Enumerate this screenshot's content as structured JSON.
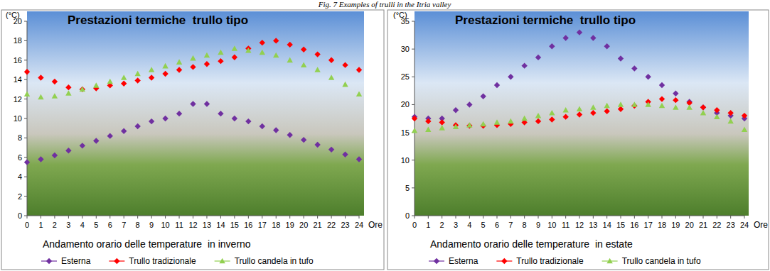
{
  "caption": "Fig. 7 Examples of trulli in the Itria valley",
  "chart_data": [
    {
      "type": "line",
      "title": "Prestazioni termiche  trullo tipo",
      "y_label": "(°C)",
      "x_unit_label": "Ore",
      "x_label": "Andamento orario delle temperature  in inverno",
      "x": [
        0,
        1,
        2,
        3,
        4,
        5,
        6,
        7,
        8,
        9,
        10,
        11,
        12,
        13,
        14,
        15,
        16,
        17,
        18,
        19,
        20,
        21,
        22,
        23,
        24
      ],
      "xlim": [
        0,
        24
      ],
      "xticks": [
        0,
        1,
        2,
        3,
        4,
        5,
        6,
        7,
        8,
        9,
        10,
        11,
        12,
        13,
        14,
        15,
        16,
        17,
        18,
        19,
        20,
        21,
        22,
        23,
        24
      ],
      "ylim": [
        0,
        20
      ],
      "yticks": [
        0,
        2,
        4,
        6,
        8,
        10,
        12,
        14,
        16,
        18,
        20
      ],
      "grid": false,
      "legend": "bottom",
      "series": [
        {
          "name": "Esterna",
          "color": "#7030a0",
          "marker": "diamond",
          "line_style": "none",
          "values": [
            5.5,
            5.8,
            6.2,
            6.7,
            7.2,
            7.7,
            8.2,
            8.7,
            9.2,
            9.7,
            10.0,
            10.5,
            11.5,
            11.5,
            10.5,
            10.0,
            9.7,
            9.2,
            8.8,
            8.3,
            7.8,
            7.3,
            6.8,
            6.3,
            5.8
          ]
        },
        {
          "name": "Trullo tradizionale",
          "color": "#ff0000",
          "marker": "diamond",
          "line_style": "none",
          "values": [
            14.8,
            14.2,
            13.8,
            13.2,
            13.0,
            13.1,
            13.4,
            13.6,
            13.9,
            14.2,
            14.6,
            15.0,
            15.3,
            15.6,
            15.9,
            16.3,
            17.2,
            17.8,
            18.0,
            17.6,
            17.1,
            16.6,
            16.0,
            15.5,
            15.0
          ]
        },
        {
          "name": "Trullo candela in tufo",
          "color": "#92d050",
          "marker": "triangle",
          "line_style": "none",
          "values": [
            12.5,
            12.2,
            12.3,
            12.6,
            13.0,
            13.4,
            13.8,
            14.2,
            14.6,
            15.0,
            15.4,
            15.8,
            16.2,
            16.5,
            16.8,
            17.2,
            17.0,
            16.8,
            16.5,
            16.0,
            15.5,
            15.0,
            14.2,
            13.5,
            12.5
          ]
        }
      ]
    },
    {
      "type": "line",
      "title": "Prestazioni termiche  trullo tipo",
      "y_label": "(°C)",
      "x_unit_label": "Ore",
      "x_label": "Andamento orario delle temperature  in estate",
      "x": [
        0,
        1,
        2,
        3,
        4,
        5,
        6,
        7,
        8,
        9,
        10,
        11,
        12,
        13,
        14,
        15,
        16,
        17,
        18,
        19,
        20,
        21,
        22,
        23,
        24
      ],
      "xlim": [
        0,
        24
      ],
      "xticks": [
        0,
        1,
        2,
        3,
        4,
        5,
        6,
        7,
        8,
        9,
        10,
        11,
        12,
        13,
        14,
        15,
        16,
        17,
        18,
        19,
        20,
        21,
        22,
        23,
        24
      ],
      "ylim": [
        0,
        35
      ],
      "yticks": [
        0,
        5,
        10,
        15,
        20,
        25,
        30,
        35
      ],
      "grid": false,
      "legend": "bottom",
      "series": [
        {
          "name": "Esterna",
          "color": "#7030a0",
          "marker": "diamond",
          "line_style": "none",
          "values": [
            17.8,
            17.5,
            17.5,
            19.0,
            20.0,
            21.5,
            23.5,
            25.0,
            27.0,
            28.5,
            30.5,
            32.0,
            33.0,
            32.0,
            30.5,
            28.3,
            26.5,
            25.0,
            23.5,
            22.0,
            20.5,
            19.5,
            18.5,
            18.0,
            17.5
          ]
        },
        {
          "name": "Trullo tradizionale",
          "color": "#ff0000",
          "marker": "diamond",
          "line_style": "none",
          "values": [
            17.5,
            17.0,
            16.8,
            16.3,
            16.2,
            16.2,
            16.3,
            16.5,
            16.8,
            17.0,
            17.3,
            17.8,
            18.2,
            18.5,
            18.8,
            19.2,
            19.8,
            20.5,
            21.0,
            20.8,
            20.3,
            19.5,
            19.0,
            18.5,
            18.0
          ]
        },
        {
          "name": "Trullo candela in tufo",
          "color": "#92d050",
          "marker": "triangle",
          "line_style": "none",
          "values": [
            15.3,
            15.5,
            15.8,
            16.0,
            16.3,
            16.5,
            16.8,
            17.0,
            17.5,
            18.0,
            18.5,
            19.0,
            19.2,
            19.5,
            19.8,
            20.0,
            20.0,
            20.0,
            19.8,
            19.5,
            19.5,
            18.5,
            17.8,
            17.0,
            15.5
          ]
        }
      ]
    }
  ]
}
